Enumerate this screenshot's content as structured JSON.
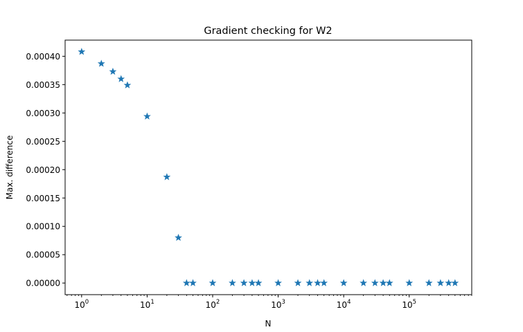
{
  "chart_data": {
    "type": "scatter",
    "title": "Gradient checking for W2",
    "xlabel": "N",
    "ylabel": "Max. difference",
    "xscale": "log",
    "xlim": [
      0.56,
      900000
    ],
    "ylim": [
      -2.05e-05,
      0.0004285
    ],
    "marker": "star",
    "color": "#1f77b4",
    "grid": false,
    "legend": "none",
    "yticks": [
      0,
      5e-05,
      0.0001,
      0.00015,
      0.0002,
      0.00025,
      0.0003,
      0.00035,
      0.0004
    ],
    "ytick_labels": [
      "0.00000",
      "0.00005",
      "0.00010",
      "0.00015",
      "0.00020",
      "0.00025",
      "0.00030",
      "0.00035",
      "0.00040"
    ],
    "xticks": [
      {
        "base": "10",
        "exp": "0",
        "value": 1
      },
      {
        "base": "10",
        "exp": "1",
        "value": 10
      },
      {
        "base": "10",
        "exp": "2",
        "value": 100
      },
      {
        "base": "10",
        "exp": "3",
        "value": 1000
      },
      {
        "base": "10",
        "exp": "4",
        "value": 10000
      },
      {
        "base": "10",
        "exp": "5",
        "value": 100000
      }
    ],
    "points": [
      {
        "x": 1,
        "y": 0.000408
      },
      {
        "x": 2,
        "y": 0.000387
      },
      {
        "x": 3,
        "y": 0.000373
      },
      {
        "x": 4,
        "y": 0.00036
      },
      {
        "x": 5,
        "y": 0.000349
      },
      {
        "x": 10,
        "y": 0.000294
      },
      {
        "x": 20,
        "y": 0.000187
      },
      {
        "x": 30,
        "y": 8e-05
      },
      {
        "x": 40,
        "y": 0
      },
      {
        "x": 50,
        "y": 0
      },
      {
        "x": 100,
        "y": 0
      },
      {
        "x": 200,
        "y": 0
      },
      {
        "x": 300,
        "y": 0
      },
      {
        "x": 400,
        "y": 0
      },
      {
        "x": 500,
        "y": 0
      },
      {
        "x": 1000,
        "y": 0
      },
      {
        "x": 2000,
        "y": 0
      },
      {
        "x": 3000,
        "y": 0
      },
      {
        "x": 4000,
        "y": 0
      },
      {
        "x": 5000,
        "y": 0
      },
      {
        "x": 10000,
        "y": 0
      },
      {
        "x": 20000,
        "y": 0
      },
      {
        "x": 30000,
        "y": 0
      },
      {
        "x": 40000,
        "y": 0
      },
      {
        "x": 50000,
        "y": 0
      },
      {
        "x": 100000,
        "y": 0
      },
      {
        "x": 200000,
        "y": 0
      },
      {
        "x": 300000,
        "y": 0
      },
      {
        "x": 400000,
        "y": 0
      },
      {
        "x": 500000,
        "y": 0
      }
    ]
  }
}
